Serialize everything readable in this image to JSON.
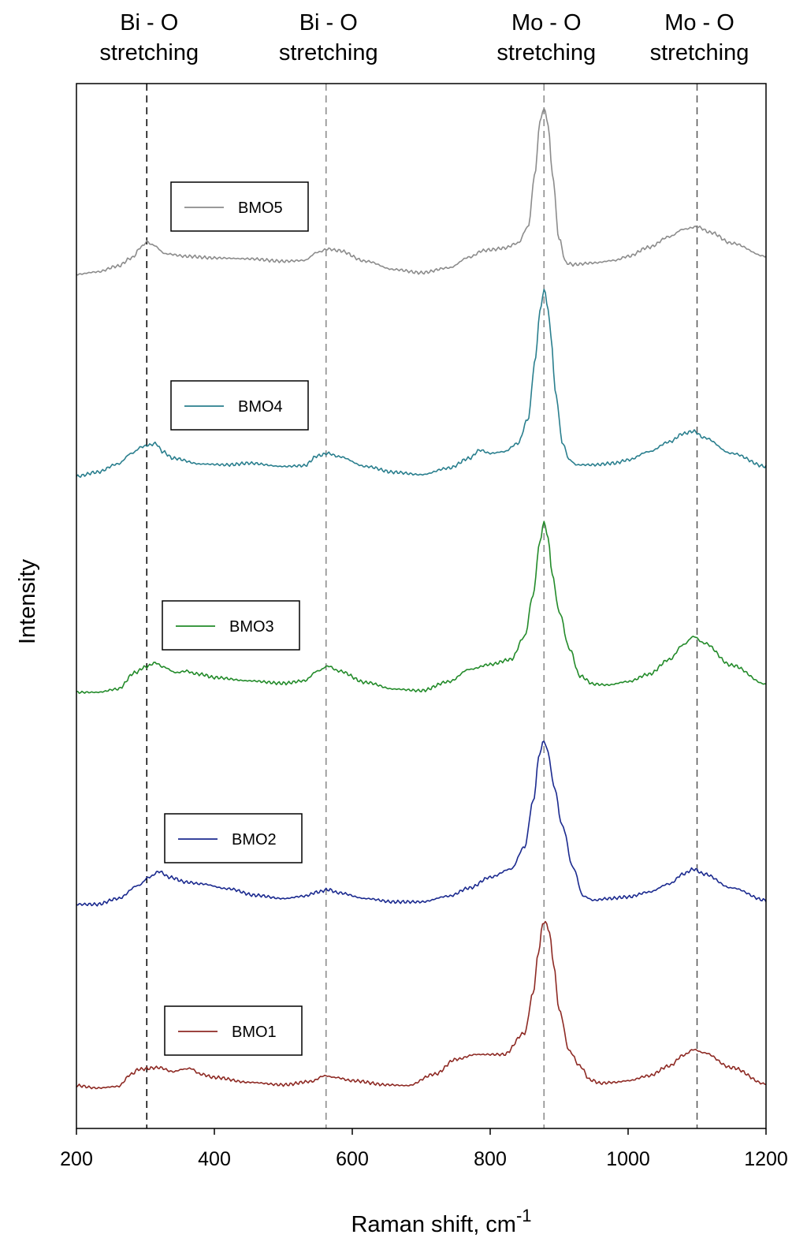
{
  "chart_data": {
    "type": "line",
    "xlabel": "Raman shift, cm",
    "xlabel_superscript": "-1",
    "ylabel": "Intensity",
    "xlim": [
      200,
      1200
    ],
    "xticks": [
      200,
      400,
      600,
      800,
      1000,
      1200
    ],
    "grid": false,
    "y_ticks_shown": false,
    "annotations": [
      {
        "line1": "Bi - O",
        "line2": "stretching",
        "x": 302,
        "line_color": "#000000"
      },
      {
        "line1": "Bi - O",
        "line2": "stretching",
        "x": 562,
        "line_color": "#888888"
      },
      {
        "line1": "Mo - O",
        "line2": "stretching",
        "x": 878,
        "line_color": "#888888"
      },
      {
        "line1": "Mo - O",
        "line2": "stretching",
        "x": 1100,
        "line_color": "#555555"
      }
    ],
    "series": [
      {
        "name": "BMO5",
        "color": "#8c8c8c",
        "offset": 4,
        "x": [
          200,
          230,
          260,
          280,
          295,
          302,
          310,
          330,
          360,
          400,
          450,
          500,
          530,
          550,
          565,
          580,
          620,
          660,
          700,
          740,
          770,
          790,
          800,
          820,
          840,
          855,
          865,
          872,
          878,
          884,
          890,
          900,
          910,
          920,
          950,
          980,
          1000,
          1030,
          1060,
          1080,
          1100,
          1120,
          1150,
          1200
        ],
        "y": [
          0.02,
          0.05,
          0.12,
          0.22,
          0.36,
          0.42,
          0.38,
          0.27,
          0.24,
          0.22,
          0.21,
          0.18,
          0.19,
          0.29,
          0.33,
          0.31,
          0.18,
          0.08,
          0.04,
          0.1,
          0.23,
          0.31,
          0.32,
          0.34,
          0.4,
          0.6,
          1.25,
          1.88,
          2.05,
          1.85,
          1.25,
          0.45,
          0.16,
          0.14,
          0.16,
          0.19,
          0.24,
          0.35,
          0.48,
          0.57,
          0.6,
          0.53,
          0.4,
          0.24
        ]
      },
      {
        "name": "BMO4",
        "color": "#2a7f8e",
        "offset": 3,
        "x": [
          200,
          230,
          260,
          280,
          295,
          305,
          315,
          325,
          340,
          380,
          420,
          450,
          500,
          530,
          550,
          565,
          580,
          620,
          660,
          700,
          740,
          770,
          785,
          800,
          820,
          840,
          855,
          865,
          872,
          878,
          884,
          888,
          895,
          905,
          915,
          925,
          950,
          980,
          1000,
          1030,
          1060,
          1080,
          1095,
          1110,
          1150,
          1200
        ],
        "y": [
          0.0,
          0.05,
          0.15,
          0.28,
          0.36,
          0.38,
          0.4,
          0.3,
          0.22,
          0.15,
          0.14,
          0.16,
          0.12,
          0.13,
          0.25,
          0.28,
          0.24,
          0.12,
          0.05,
          0.02,
          0.1,
          0.22,
          0.32,
          0.28,
          0.3,
          0.4,
          0.7,
          1.4,
          2.0,
          2.28,
          2.05,
          1.7,
          1.0,
          0.4,
          0.2,
          0.14,
          0.14,
          0.16,
          0.2,
          0.3,
          0.42,
          0.52,
          0.55,
          0.47,
          0.28,
          0.12
        ]
      },
      {
        "name": "BMO3",
        "color": "#238b2a",
        "offset": 2,
        "x": [
          200,
          230,
          260,
          285,
          300,
          315,
          325,
          345,
          360,
          370,
          380,
          400,
          450,
          500,
          530,
          550,
          565,
          580,
          620,
          660,
          700,
          740,
          770,
          800,
          830,
          850,
          862,
          872,
          878,
          884,
          890,
          900,
          915,
          930,
          950,
          970,
          1000,
          1030,
          1060,
          1080,
          1095,
          1110,
          1150,
          1200
        ],
        "y": [
          0.02,
          0.02,
          0.06,
          0.26,
          0.33,
          0.38,
          0.33,
          0.26,
          0.28,
          0.25,
          0.24,
          0.2,
          0.16,
          0.13,
          0.16,
          0.28,
          0.34,
          0.28,
          0.14,
          0.06,
          0.04,
          0.15,
          0.3,
          0.36,
          0.42,
          0.7,
          1.2,
          1.85,
          2.1,
          1.9,
          1.45,
          1.0,
          0.55,
          0.22,
          0.12,
          0.11,
          0.15,
          0.24,
          0.42,
          0.6,
          0.7,
          0.62,
          0.35,
          0.12
        ]
      },
      {
        "name": "BMO2",
        "color": "#1b2a8f",
        "offset": 1,
        "x": [
          200,
          230,
          260,
          290,
          305,
          320,
          335,
          360,
          380,
          420,
          460,
          500,
          530,
          550,
          565,
          580,
          620,
          660,
          700,
          740,
          770,
          800,
          830,
          850,
          862,
          872,
          878,
          884,
          892,
          905,
          920,
          935,
          950,
          970,
          1000,
          1030,
          1060,
          1080,
          1095,
          1110,
          1150,
          1200
        ],
        "y": [
          0.05,
          0.05,
          0.12,
          0.28,
          0.38,
          0.45,
          0.38,
          0.32,
          0.3,
          0.24,
          0.16,
          0.12,
          0.15,
          0.2,
          0.23,
          0.19,
          0.12,
          0.08,
          0.08,
          0.15,
          0.25,
          0.38,
          0.48,
          0.75,
          1.3,
          1.9,
          2.05,
          1.9,
          1.5,
          1.0,
          0.5,
          0.15,
          0.1,
          0.12,
          0.14,
          0.2,
          0.3,
          0.42,
          0.48,
          0.42,
          0.25,
          0.1
        ]
      },
      {
        "name": "BMO1",
        "color": "#8e2a24",
        "offset": 0,
        "x": [
          200,
          230,
          260,
          280,
          290,
          320,
          340,
          355,
          365,
          380,
          400,
          450,
          500,
          540,
          560,
          575,
          600,
          650,
          680,
          720,
          750,
          780,
          820,
          850,
          862,
          870,
          876,
          880,
          886,
          892,
          900,
          915,
          930,
          945,
          960,
          980,
          1000,
          1030,
          1060,
          1080,
          1095,
          1110,
          1150,
          1200
        ],
        "y": [
          0.08,
          0.05,
          0.07,
          0.22,
          0.28,
          0.3,
          0.25,
          0.28,
          0.29,
          0.22,
          0.18,
          0.12,
          0.09,
          0.13,
          0.2,
          0.18,
          0.14,
          0.09,
          0.08,
          0.22,
          0.4,
          0.46,
          0.46,
          0.72,
          1.2,
          1.7,
          2.05,
          2.08,
          1.95,
          1.55,
          1.0,
          0.5,
          0.32,
          0.15,
          0.11,
          0.12,
          0.14,
          0.2,
          0.32,
          0.45,
          0.52,
          0.48,
          0.3,
          0.1
        ]
      }
    ]
  }
}
